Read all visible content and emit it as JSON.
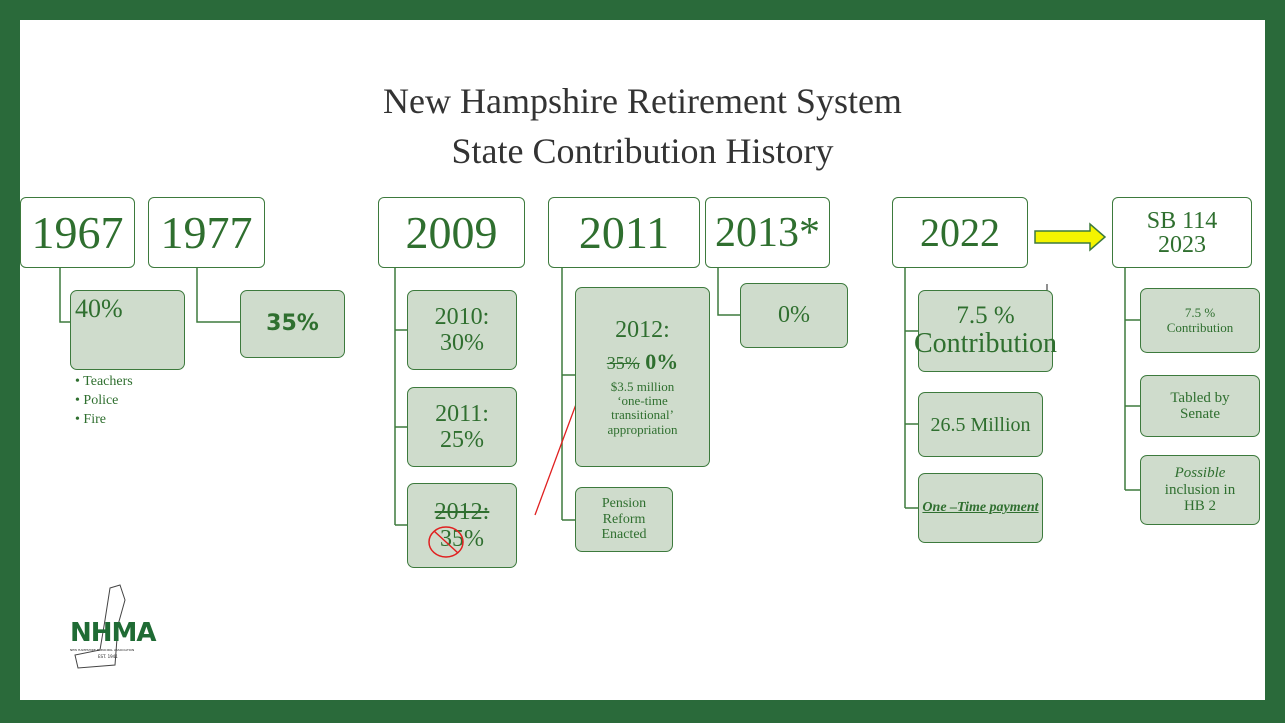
{
  "title": [
    "New Hampshire Retirement System",
    "State Contribution History"
  ],
  "columns": [
    {
      "year": [
        "1967"
      ],
      "items": [
        {
          "lines": [
            "40%"
          ]
        }
      ],
      "bullets": [
        "Teachers",
        "Police",
        "Fire"
      ]
    },
    {
      "year": [
        "1977"
      ],
      "items": [
        {
          "lines": [
            "35%"
          ]
        }
      ]
    },
    {
      "year": [
        "2009"
      ],
      "items": [
        {
          "lines": [
            "2010:",
            "30%"
          ]
        },
        {
          "lines": [
            "2011:",
            "25%"
          ]
        },
        {
          "lines": [
            "2012:",
            "35%"
          ]
        }
      ]
    },
    {
      "year": [
        "2011"
      ],
      "items": [
        {
          "lines": [
            "2012:",
            "35%",
            "0%",
            "$3.5 million",
            "‘one-time",
            "transitional’",
            "appropriation"
          ]
        },
        {
          "lines": [
            "Pension",
            "Reform",
            "Enacted"
          ]
        }
      ]
    },
    {
      "year": [
        "2013*"
      ],
      "items": [
        {
          "lines": [
            "0%"
          ]
        }
      ]
    },
    {
      "year": [
        "2022"
      ],
      "items": [
        {
          "lines": [
            "7.5 %",
            "Contribution"
          ]
        },
        {
          "lines": [
            "26.5 Million"
          ]
        },
        {
          "lines": [
            "One –Time payment"
          ]
        }
      ]
    },
    {
      "year": [
        "SB 114",
        "2023"
      ],
      "items": [
        {
          "lines": [
            "7.5 %",
            "Contribution"
          ]
        },
        {
          "lines": [
            "Tabled by",
            "Senate"
          ]
        },
        {
          "lines": [
            "Possible",
            "inclusion in",
            "HB 2"
          ]
        }
      ]
    }
  ],
  "logo": {
    "name": "NHMA",
    "subtitle": "NEW HAMPSHIRE MUNICIPAL ASSOCIATION",
    "est": "EST. 1941"
  }
}
